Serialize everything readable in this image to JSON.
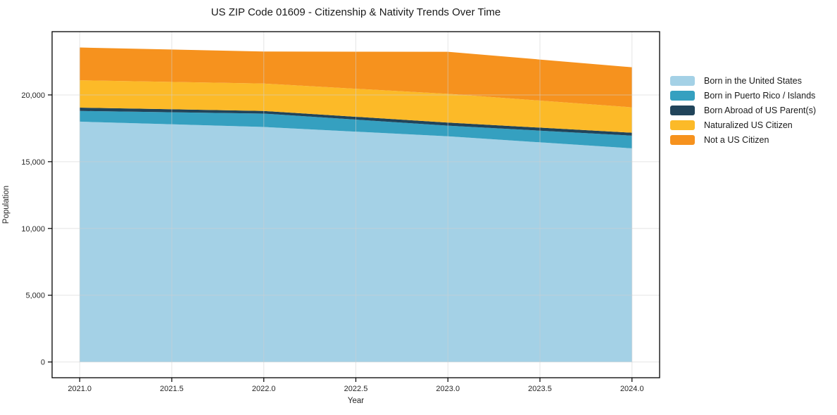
{
  "chart_data": {
    "type": "area",
    "stacked": true,
    "title": "US ZIP Code 01609 - Citizenship & Nativity Trends Over Time",
    "xlabel": "Year",
    "ylabel": "Population",
    "x": [
      2021,
      2022,
      2023,
      2024
    ],
    "series": [
      {
        "name": "Born in the United States",
        "color": "#a4d1e6",
        "values": [
          18000,
          17600,
          16900,
          16000
        ]
      },
      {
        "name": "Born in Puerto Rico / Islands",
        "color": "#35a0c0",
        "values": [
          800,
          1000,
          800,
          950
        ]
      },
      {
        "name": "Born Abroad of US Parent(s)",
        "color": "#21445a",
        "values": [
          250,
          200,
          230,
          220
        ]
      },
      {
        "name": "Naturalized US Citizen",
        "color": "#fcba28",
        "values": [
          2050,
          2050,
          2150,
          1900
        ]
      },
      {
        "name": "Not a US Citizen",
        "color": "#f6921e",
        "values": [
          2450,
          2400,
          3150,
          3000
        ]
      }
    ],
    "totals": [
      23550,
      23250,
      23230,
      22070
    ],
    "xlim": [
      2020.85,
      2024.15
    ],
    "ylim": [
      -1178,
      24738
    ],
    "xticks": [
      2021.0,
      2021.5,
      2022.0,
      2022.5,
      2023.0,
      2023.5,
      2024.0
    ],
    "xtick_labels": [
      "2021.0",
      "2021.5",
      "2022.0",
      "2022.5",
      "2023.0",
      "2023.5",
      "2024.0"
    ],
    "yticks": [
      0,
      5000,
      10000,
      15000,
      20000
    ],
    "ytick_labels": [
      "0",
      "5,000",
      "10,000",
      "15,000",
      "20,000"
    ],
    "grid": true,
    "grid_color": "#cfcfcf",
    "legend_position": "right",
    "axis_color": "#000000",
    "text_color": "#262626"
  }
}
